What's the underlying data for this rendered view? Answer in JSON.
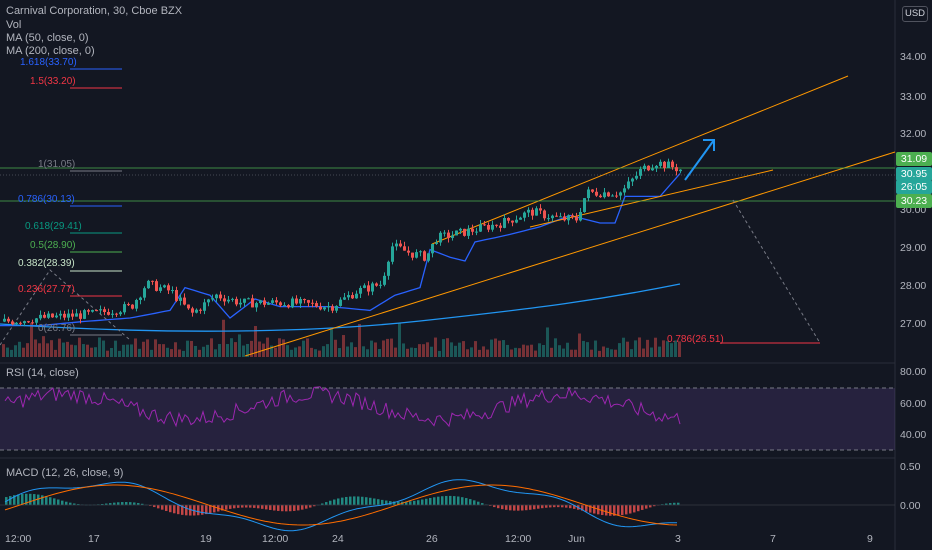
{
  "header": {
    "symbol_line": "Carnival Corporation, 30, Cboe BZX",
    "vol": "Vol",
    "ma50": "MA (50, close, 0)",
    "ma200": "MA (200, close, 0)",
    "currency": "USD"
  },
  "price_axis": {
    "ticks": [
      "34.00",
      "33.00",
      "32.00",
      "30.00",
      "29.00",
      "28.00",
      "27.00"
    ],
    "labels": [
      {
        "text": "31.09",
        "color": "#26a69a"
      },
      {
        "text": "30.95",
        "color": "#26a69a"
      },
      {
        "text": "26:05",
        "color": "#26a69a"
      },
      {
        "text": "30.23",
        "color": "#4caf50"
      }
    ]
  },
  "fib_levels": [
    {
      "label": "1.618(33.70)",
      "color": "#2962ff"
    },
    {
      "label": "1.5(33.20)",
      "color": "#f23645"
    },
    {
      "label": "1(31.05)",
      "color": "#787b86"
    },
    {
      "label": "0.786(30.13)",
      "color": "#2962ff"
    },
    {
      "label": "0.618(29.41)",
      "color": "#089981"
    },
    {
      "label": "0.5(28.90)",
      "color": "#4caf50"
    },
    {
      "label": "0.382(28.39)",
      "color": "#c8e6c9"
    },
    {
      "label": "0.236(27.77)",
      "color": "#f23645"
    },
    {
      "label": "0(26.76)",
      "color": "#787b86"
    },
    {
      "label": "0.786(26.51)",
      "color": "#f23645"
    }
  ],
  "rsi": {
    "title": "RSI (14, close)",
    "ticks": [
      "80.00",
      "60.00",
      "40.00"
    ]
  },
  "macd": {
    "title": "MACD (12, 26, close, 9)",
    "ticks": [
      "0.50",
      "0.00"
    ]
  },
  "time_axis": {
    "ticks": [
      "12:00",
      "17",
      "19",
      "12:00",
      "24",
      "26",
      "12:00",
      "Jun",
      "3",
      "7",
      "9"
    ]
  },
  "colors": {
    "up": "#26a69a",
    "down": "#ef5350",
    "ma50": "#2962ff",
    "ma200": "#2196f3",
    "channel": "#ff9800",
    "rsi": "#9c27b0",
    "macd": "#2196f3",
    "signal": "#ff6d00"
  }
}
